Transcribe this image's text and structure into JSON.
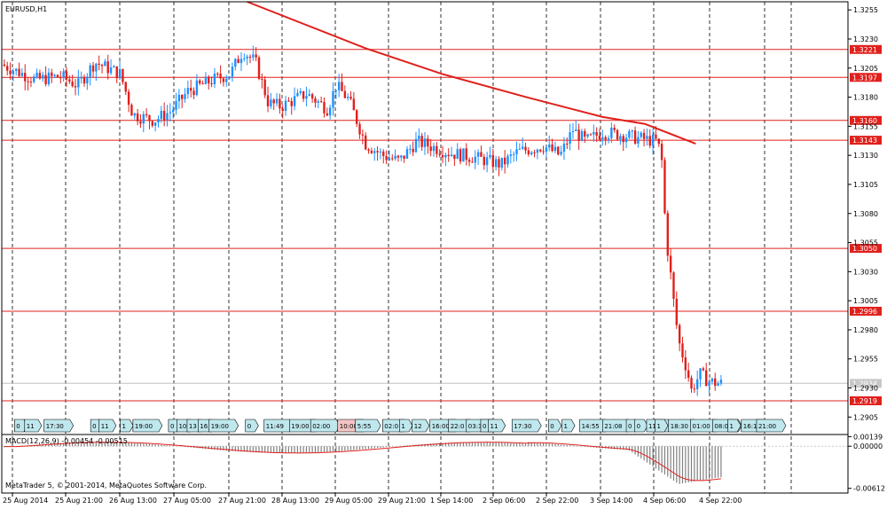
{
  "symbol_title": "EURUSD,H1",
  "copyright": "MetaTrader 5, © 2001-2014, MetaQuotes Software Corp.",
  "colors": {
    "bull": "#1e90ff",
    "bear": "#e0201c",
    "hline": "#e0201c",
    "trend": "#e0201c",
    "macd_hist": "#808080",
    "macd_signal": "#e0201c",
    "event_fill": "#bfe8ee",
    "event_fill_red": "#f4c4c4"
  },
  "chart_data": {
    "type": "candlestick",
    "y_axis": {
      "ticks": [
        "1.3255",
        "1.3230",
        "1.3205",
        "1.3180",
        "1.3155",
        "1.3130",
        "1.3105",
        "1.3080",
        "1.3055",
        "1.3030",
        "1.3005",
        "1.2980",
        "1.2955",
        "1.2930",
        "1.2905"
      ],
      "ylim": [
        1.289,
        1.3262
      ]
    },
    "x_axis": {
      "labels": [
        "25 Aug 2014",
        "25 Aug 21:00",
        "26 Aug 13:00",
        "27 Aug 05:00",
        "27 Aug 21:00",
        "28 Aug 13:00",
        "29 Aug 05:00",
        "29 Aug 21:00",
        "1 Sep 14:00",
        "2 Sep 06:00",
        "2 Sep 22:00",
        "3 Sep 14:00",
        "4 Sep 06:00",
        "4 Sep 22:00"
      ]
    },
    "horizontal_levels": [
      {
        "label": "1.3221",
        "value": 1.3221
      },
      {
        "label": "1.3197",
        "value": 1.3197
      },
      {
        "label": "1.3160",
        "value": 1.316
      },
      {
        "label": "1.3143",
        "value": 1.3143
      },
      {
        "label": "1.3050",
        "value": 1.305
      },
      {
        "label": "1.2996",
        "value": 1.2996
      },
      {
        "label": "1.2919",
        "value": 1.2919
      }
    ],
    "current_price": {
      "label": "1.2934",
      "value": 1.2934
    },
    "trendline": {
      "points": [
        [
          0.29,
          1.3262
        ],
        [
          0.43,
          1.3222
        ],
        [
          0.52,
          1.32
        ],
        [
          0.62,
          1.318
        ],
        [
          0.71,
          1.3163
        ],
        [
          0.76,
          1.3157
        ],
        [
          0.82,
          1.314
        ]
      ]
    },
    "events": [
      {
        "x": 0.015,
        "label": "0"
      },
      {
        "x": 0.027,
        "label": "11"
      },
      {
        "x": 0.05,
        "label": "17:30"
      },
      {
        "x": 0.105,
        "label": "0"
      },
      {
        "x": 0.115,
        "label": "11"
      },
      {
        "x": 0.14,
        "label": "1"
      },
      {
        "x": 0.155,
        "label": "19:00"
      },
      {
        "x": 0.197,
        "label": "0"
      },
      {
        "x": 0.207,
        "label": "10"
      },
      {
        "x": 0.219,
        "label": "13"
      },
      {
        "x": 0.232,
        "label": "16"
      },
      {
        "x": 0.245,
        "label": "19:00"
      },
      {
        "x": 0.288,
        "label": "0"
      },
      {
        "x": 0.31,
        "label": "11:49"
      },
      {
        "x": 0.34,
        "label": "19:00"
      },
      {
        "x": 0.365,
        "label": "02:00"
      },
      {
        "x": 0.397,
        "label": "10:00"
      },
      {
        "x": 0.418,
        "label": "5:55"
      },
      {
        "x": 0.45,
        "label": "02:0"
      },
      {
        "x": 0.47,
        "label": "1"
      },
      {
        "x": 0.485,
        "label": "12"
      },
      {
        "x": 0.506,
        "label": "16:00"
      },
      {
        "x": 0.528,
        "label": "22:0"
      },
      {
        "x": 0.549,
        "label": "03:30"
      },
      {
        "x": 0.566,
        "label": "0"
      },
      {
        "x": 0.575,
        "label": "11"
      },
      {
        "x": 0.603,
        "label": "17:30"
      },
      {
        "x": 0.646,
        "label": "0"
      },
      {
        "x": 0.662,
        "label": "1"
      },
      {
        "x": 0.683,
        "label": "14:55"
      },
      {
        "x": 0.71,
        "label": "21:08"
      },
      {
        "x": 0.738,
        "label": "0"
      },
      {
        "x": 0.748,
        "label": "0"
      },
      {
        "x": 0.762,
        "label": "11:0"
      },
      {
        "x": 0.772,
        "label": "1"
      },
      {
        "x": 0.788,
        "label": "18:30"
      },
      {
        "x": 0.814,
        "label": "01:00"
      },
      {
        "x": 0.84,
        "label": "08:00"
      },
      {
        "x": 0.858,
        "label": "1"
      },
      {
        "x": 0.874,
        "label": "16:1"
      },
      {
        "x": 0.892,
        "label": "21:00"
      }
    ],
    "macd": {
      "label": "MACD(12,26,9) -0.00454 -0.00515",
      "ticks": [
        "0.00139",
        "0.00000",
        "-0.00612"
      ],
      "ylim": [
        -0.0068,
        0.0017
      ]
    }
  }
}
